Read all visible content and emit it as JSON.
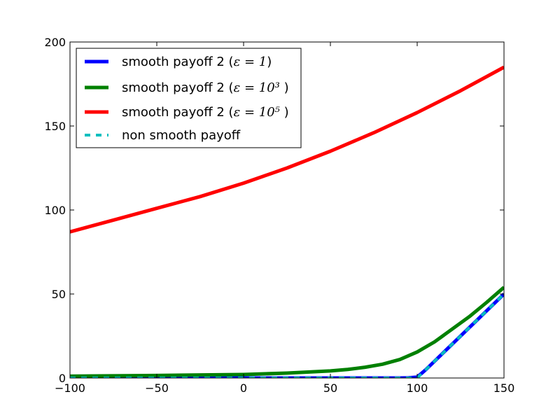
{
  "chart_data": {
    "type": "line",
    "title": "",
    "xlabel": "",
    "ylabel": "",
    "xlim": [
      -100,
      150
    ],
    "ylim": [
      0,
      200
    ],
    "x_ticks": [
      -100,
      -50,
      0,
      50,
      100,
      150
    ],
    "y_ticks": [
      0,
      50,
      100,
      150,
      200
    ],
    "x_tick_labels": [
      "−100",
      "−50",
      "0",
      "50",
      "100",
      "150"
    ],
    "y_tick_labels": [
      "0",
      "50",
      "100",
      "150",
      "200"
    ],
    "grid": false,
    "legend_position": "top-left",
    "series": [
      {
        "name": "smooth payoff 2 (ε = 1)",
        "legend_prefix": "smooth payoff 2 (",
        "legend_math": "ε = 1",
        "legend_suffix": ")",
        "color": "#0000ff",
        "style": "solid",
        "x": [
          -100,
          0,
          90,
          95,
          100,
          105,
          110,
          150
        ],
        "y": [
          0,
          0,
          0,
          0.1,
          0.5,
          5,
          10,
          50
        ]
      },
      {
        "name": "smooth payoff 2 (ε = 10³ )",
        "legend_prefix": "smooth payoff 2 (",
        "legend_math": "ε = 10³",
        "legend_suffix": " )",
        "color": "#008000",
        "style": "solid",
        "x": [
          -100,
          -50,
          0,
          25,
          50,
          60,
          70,
          80,
          90,
          100,
          110,
          120,
          130,
          140,
          150
        ],
        "y": [
          1.1,
          1.5,
          2.1,
          2.9,
          4.2,
          5.1,
          6.4,
          8.2,
          11,
          15.5,
          21.5,
          29,
          36.5,
          45,
          54
        ]
      },
      {
        "name": "smooth payoff 2 (ε = 10⁵ )",
        "legend_prefix": "smooth payoff 2 (",
        "legend_math": "ε = 10⁵",
        "legend_suffix": " )",
        "color": "#ff0000",
        "style": "solid",
        "x": [
          -100,
          -75,
          -50,
          -25,
          0,
          25,
          50,
          75,
          100,
          125,
          150
        ],
        "y": [
          87,
          94,
          101,
          108,
          116,
          125,
          135,
          146,
          158,
          171,
          185
        ]
      },
      {
        "name": "non smooth payoff",
        "legend_prefix": "non smooth payoff",
        "legend_math": "",
        "legend_suffix": "",
        "color": "#00bfbf",
        "style": "dashed",
        "x": [
          -100,
          100,
          150
        ],
        "y": [
          0,
          0,
          50
        ]
      }
    ]
  }
}
